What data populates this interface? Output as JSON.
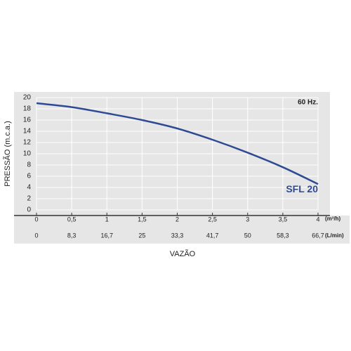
{
  "chart_data": {
    "type": "line",
    "annotation": "60 Hz.",
    "ylabel": "PRESSÃO (m.c.a.)",
    "xlabel": "VAZÃO",
    "x_unit": "(m³/h)",
    "x2_unit": "(L/min)",
    "x": [
      0,
      0.5,
      1,
      1.5,
      2,
      2.5,
      3,
      3.5,
      4
    ],
    "series": [
      {
        "name": "SFL 20",
        "color": "#2e4a94",
        "values": [
          19,
          18.3,
          17.2,
          16,
          14.5,
          12.5,
          10.2,
          7.6,
          4.6
        ]
      }
    ],
    "xlim": [
      0,
      4
    ],
    "xticks": [
      0,
      {
        "value": 0.5,
        "label": "0,5"
      },
      1,
      {
        "value": 1.5,
        "label": "1,5"
      },
      2,
      {
        "value": 2.5,
        "label": "2,5"
      },
      3,
      {
        "value": 3.5,
        "label": "3,5"
      },
      4
    ],
    "x2_labels": [
      "0",
      "8,3",
      "16,7",
      "25",
      "33,3",
      "41,7",
      "50",
      "58,3",
      "66,7"
    ],
    "ylim": [
      0,
      20
    ],
    "yticks": [
      0,
      2,
      4,
      6,
      8,
      10,
      12,
      14,
      16,
      18,
      20
    ],
    "grid": true
  }
}
